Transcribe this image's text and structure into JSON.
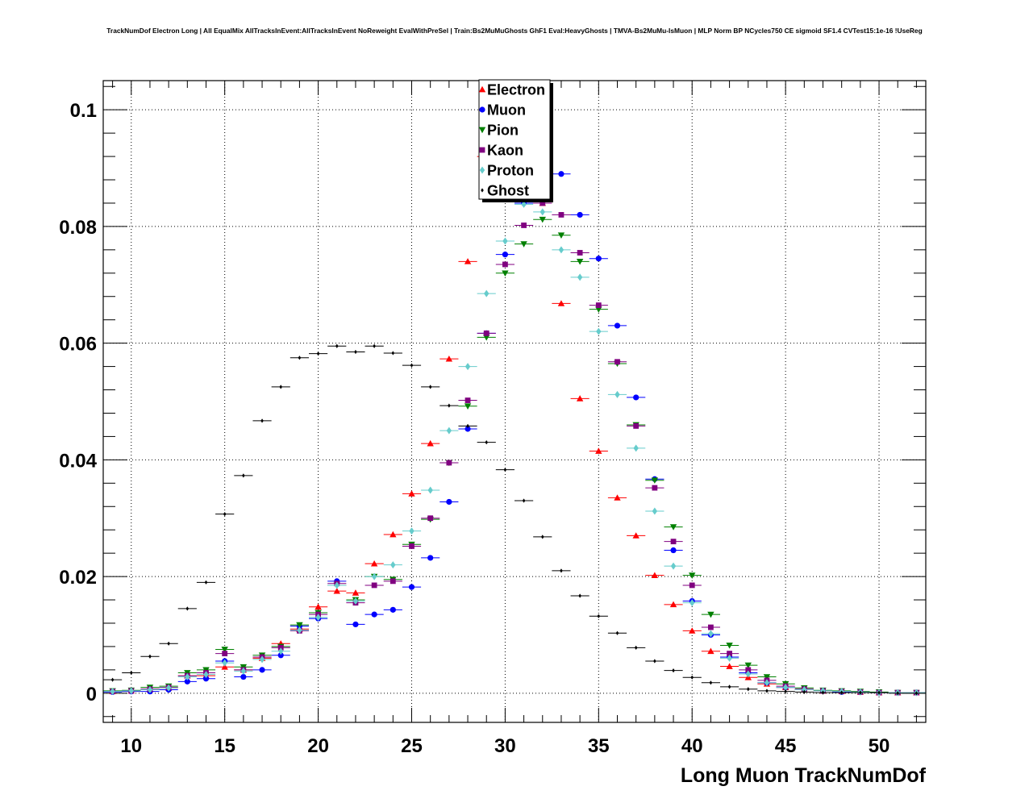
{
  "chart_data": {
    "type": "scatter",
    "title": "TrackNumDof Electron Long | All EqualMix AllTracksInEvent:AllTracksInEvent NoReweight EvalWithPreSel | Train:Bs2MuMuGhosts GhF1 Eval:HeavyGhosts | TMVA-Bs2MuMu-IsMuon | MLP Norm BP NCycles750 CE sigmoid SF1.4 CVTest15:1e-16 !UseReg",
    "xlabel": "Long Muon TrackNumDof",
    "ylabel": "",
    "xlim": [
      8.5,
      52.5
    ],
    "ylim": [
      -0.005,
      0.105
    ],
    "xticks": [
      "10",
      "15",
      "20",
      "25",
      "30",
      "35",
      "40",
      "45",
      "50"
    ],
    "yticks": [
      "0",
      "0.02",
      "0.04",
      "0.06",
      "0.08",
      "0.1"
    ],
    "grid": true,
    "legend_position": "top-center",
    "x": [
      9,
      10,
      11,
      12,
      13,
      14,
      15,
      16,
      17,
      18,
      19,
      20,
      21,
      22,
      23,
      24,
      25,
      26,
      27,
      28,
      29,
      30,
      31,
      32,
      33,
      34,
      35,
      36,
      37,
      38,
      39,
      40,
      41,
      42,
      43,
      44,
      45,
      46,
      47,
      48,
      49,
      50,
      51,
      52
    ],
    "series": [
      {
        "name": "Electron",
        "color": "#ff0000",
        "marker": "triangle-up",
        "values": [
          0.0003,
          0.0004,
          0.0006,
          0.0009,
          0.003,
          0.003,
          0.0045,
          0.004,
          0.006,
          0.0085,
          0.011,
          0.0148,
          0.0175,
          0.0172,
          0.0222,
          0.0272,
          0.0342,
          0.0428,
          0.0573,
          0.074,
          0.092,
          0.0955,
          0.092,
          0.084,
          0.0668,
          0.0505,
          0.0415,
          0.0335,
          0.027,
          0.0202,
          0.0152,
          0.0107,
          0.0072,
          0.0046,
          0.0027,
          0.0016,
          0.001,
          0.0006,
          0.0004,
          0.0003,
          0.0002,
          0.0001,
          0.0001,
          0.0001
        ]
      },
      {
        "name": "Muon",
        "color": "#0000ff",
        "marker": "circle",
        "values": [
          0.0002,
          0.0003,
          0.0003,
          0.0006,
          0.002,
          0.0025,
          0.0055,
          0.0028,
          0.004,
          0.0065,
          0.0115,
          0.0128,
          0.0192,
          0.0118,
          0.0135,
          0.0143,
          0.0182,
          0.0232,
          0.0328,
          0.0453,
          0.0617,
          0.0752,
          0.084,
          0.0888,
          0.089,
          0.082,
          0.0745,
          0.063,
          0.0507,
          0.0367,
          0.0245,
          0.0158,
          0.01,
          0.0062,
          0.0035,
          0.0018,
          0.001,
          0.0006,
          0.0004,
          0.0002,
          0.0002,
          0.0001,
          0.0001,
          0.0001
        ]
      },
      {
        "name": "Pion",
        "color": "#008000",
        "marker": "triangle-down",
        "values": [
          0.0004,
          0.0005,
          0.001,
          0.0012,
          0.0035,
          0.004,
          0.0075,
          0.0045,
          0.0065,
          0.008,
          0.0117,
          0.0138,
          0.0185,
          0.016,
          0.02,
          0.0195,
          0.0255,
          0.0298,
          0.0395,
          0.0492,
          0.061,
          0.072,
          0.077,
          0.0812,
          0.0785,
          0.074,
          0.0658,
          0.0565,
          0.046,
          0.0365,
          0.0285,
          0.0202,
          0.0135,
          0.0082,
          0.0048,
          0.0028,
          0.0016,
          0.0009,
          0.0005,
          0.0004,
          0.0003,
          0.0002,
          0.0001,
          0.0001
        ]
      },
      {
        "name": "Kaon",
        "color": "#800080",
        "marker": "square",
        "values": [
          0.0003,
          0.0004,
          0.0007,
          0.001,
          0.003,
          0.0035,
          0.0068,
          0.004,
          0.0062,
          0.0078,
          0.0107,
          0.0135,
          0.0188,
          0.0155,
          0.0185,
          0.0192,
          0.0252,
          0.03,
          0.0395,
          0.0502,
          0.0617,
          0.0735,
          0.0802,
          0.084,
          0.082,
          0.0755,
          0.0665,
          0.0568,
          0.0458,
          0.0352,
          0.026,
          0.0185,
          0.0113,
          0.0068,
          0.004,
          0.0022,
          0.0012,
          0.0007,
          0.0004,
          0.0003,
          0.0002,
          0.0001,
          0.0001,
          0.0001
        ]
      },
      {
        "name": "Proton",
        "color": "#66cccc",
        "marker": "diamond",
        "values": [
          0.0003,
          0.0004,
          0.0006,
          0.0009,
          0.0028,
          0.0032,
          0.0052,
          0.0038,
          0.0058,
          0.0072,
          0.0108,
          0.013,
          0.0185,
          0.0158,
          0.02,
          0.022,
          0.0278,
          0.0348,
          0.045,
          0.056,
          0.0685,
          0.0775,
          0.0838,
          0.0825,
          0.076,
          0.0713,
          0.062,
          0.0512,
          0.042,
          0.0312,
          0.0218,
          0.0155,
          0.0102,
          0.006,
          0.0033,
          0.0018,
          0.001,
          0.0006,
          0.0004,
          0.0003,
          0.0002,
          0.0001,
          0.0001,
          0.0001
        ]
      },
      {
        "name": "Ghost",
        "color": "#000000",
        "marker": "small-diamond",
        "values": [
          0.0023,
          0.0035,
          0.0063,
          0.0085,
          0.0145,
          0.019,
          0.0307,
          0.0373,
          0.0467,
          0.0525,
          0.0575,
          0.0582,
          0.0595,
          0.0585,
          0.0595,
          0.0583,
          0.0562,
          0.0525,
          0.0493,
          0.0458,
          0.043,
          0.0383,
          0.033,
          0.0268,
          0.021,
          0.0167,
          0.0132,
          0.0103,
          0.0078,
          0.0055,
          0.0039,
          0.0027,
          0.0018,
          0.0011,
          0.0007,
          0.0004,
          0.0003,
          0.0002,
          0.0001,
          0.0001,
          0.0001,
          0.0001,
          0.0,
          0.0
        ]
      }
    ]
  }
}
